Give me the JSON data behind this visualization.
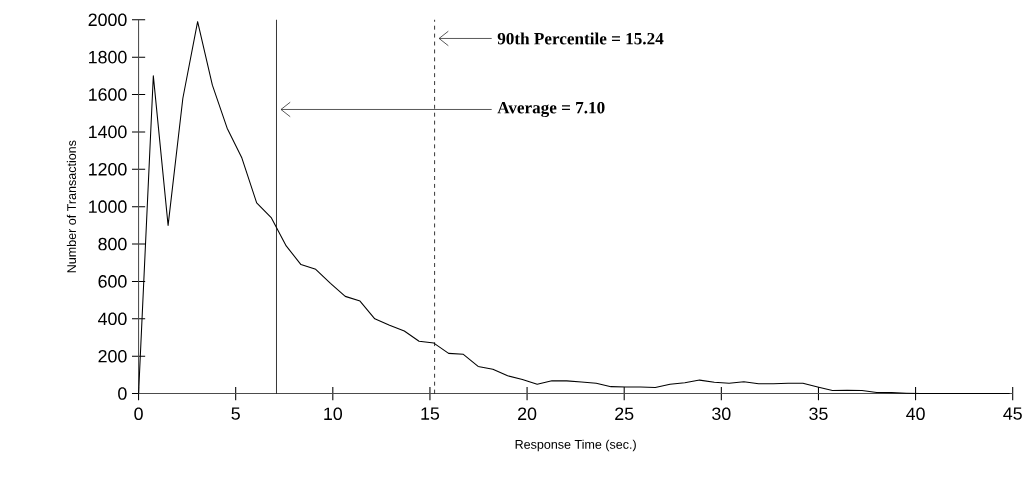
{
  "chart_data": {
    "type": "line",
    "xlabel": "Response Time (sec.)",
    "ylabel": "Number of Transactions",
    "x": [
      0,
      0.76,
      1.52,
      2.28,
      3.04,
      3.8,
      4.56,
      5.32,
      6.08,
      6.84,
      7.6,
      8.36,
      9.12,
      9.88,
      10.64,
      11.4,
      12.16,
      12.92,
      13.68,
      14.44,
      15.2,
      15.96,
      16.72,
      17.48,
      18.24,
      19.0,
      19.76,
      20.52,
      21.28,
      22.04,
      22.8,
      23.56,
      24.32,
      25.08,
      25.84,
      26.6,
      27.36,
      28.12,
      28.88,
      29.64,
      30.4,
      31.16,
      31.92,
      32.68,
      33.44,
      34.2,
      34.96,
      35.72,
      36.48,
      37.24,
      38.0,
      38.76,
      39.52,
      40.28,
      41.04,
      41.8,
      42.56,
      43.32,
      44.08,
      44.84
    ],
    "values": [
      0,
      1700,
      900,
      1580,
      1990,
      1650,
      1420,
      1260,
      1020,
      940,
      790,
      690,
      665,
      590,
      520,
      495,
      400,
      365,
      335,
      280,
      270,
      215,
      210,
      145,
      130,
      95,
      75,
      50,
      68,
      68,
      62,
      55,
      37,
      35,
      35,
      32,
      50,
      58,
      72,
      60,
      55,
      63,
      52,
      52,
      55,
      55,
      35,
      16,
      18,
      16,
      6,
      5,
      2,
      0,
      0,
      0,
      0,
      0,
      0,
      0
    ],
    "color": "#000000",
    "marker": "none",
    "line_style": "solid",
    "grid": false,
    "xlim": [
      0,
      45
    ],
    "xticks": [
      0,
      5,
      10,
      15,
      20,
      25,
      30,
      35,
      40,
      45
    ],
    "ylim": [
      0,
      2000
    ],
    "yticks": [
      0,
      200,
      400,
      600,
      800,
      1000,
      1200,
      1400,
      1600,
      1800,
      2000
    ],
    "ref_lines": [
      {
        "axis": "x",
        "value": 7.1,
        "label": "Average = 7.10",
        "color": "#000000",
        "line_style": "solid"
      },
      {
        "axis": "x",
        "value": 15.24,
        "label": "90th Percentile = 15.24",
        "color": "#000000",
        "line_style": "dashed"
      }
    ]
  }
}
